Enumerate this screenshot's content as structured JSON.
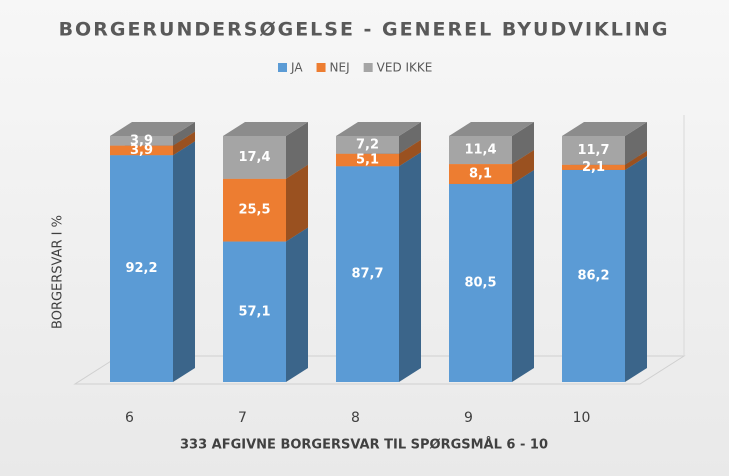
{
  "chart_data": {
    "type": "bar3d-stacked",
    "title": "BORGERUNDERSØGELSE - GENEREL BYUDVIKLING",
    "x_label": "333 AFGIVNE BORGERSVAR TIL SPØRGSMÅL  6 - 10",
    "y_label": "BORGERSVAR I %",
    "categories": [
      "6",
      "7",
      "8",
      "9",
      "10"
    ],
    "ylim": [
      0,
      100
    ],
    "series": [
      {
        "name": "JA",
        "color": "#5b9bd5",
        "values": [
          92.2,
          57.1,
          87.7,
          80.5,
          86.2
        ],
        "value_labels": [
          "92,2",
          "57,1",
          "87,7",
          "80,5",
          "86,2"
        ]
      },
      {
        "name": "NEJ",
        "color": "#ed7d31",
        "values": [
          3.9,
          25.5,
          5.1,
          8.1,
          2.1
        ],
        "value_labels": [
          "3,9",
          "25,5",
          "5,1",
          "8,1",
          "2,1"
        ]
      },
      {
        "name": "VED IKKE",
        "color": "#a5a5a5",
        "values": [
          3.9,
          17.4,
          7.2,
          11.4,
          11.7
        ],
        "value_labels": [
          "3,9",
          "17,4",
          "7,2",
          "11,4",
          "11,7"
        ]
      }
    ]
  }
}
